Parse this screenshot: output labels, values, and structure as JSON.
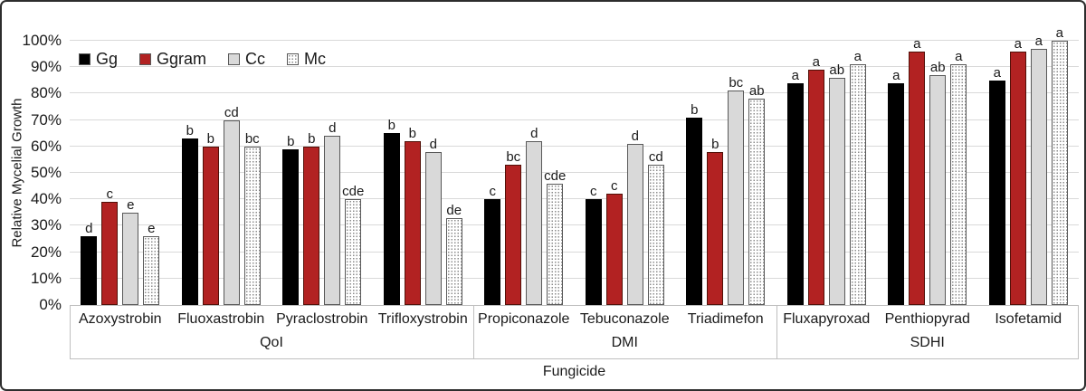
{
  "chart_data": {
    "type": "bar",
    "title": "",
    "ylabel": "Relative Mycelial Growth",
    "xlabel": "Fungicide",
    "ylim": [
      0,
      100
    ],
    "ytick_step": 10,
    "ytick_suffix": "%",
    "grid": true,
    "legend_position": "top-left-inside",
    "series": [
      {
        "name": "Gg",
        "color": "#000000",
        "style": "solid-black"
      },
      {
        "name": "Ggram",
        "color": "#b22222",
        "style": "solid-red"
      },
      {
        "name": "Cc",
        "color": "#d9d9d9",
        "style": "gray"
      },
      {
        "name": "Mc",
        "color": "#ffffff",
        "style": "dotted"
      }
    ],
    "groups": [
      {
        "label": "QoI",
        "categories": [
          {
            "name": "Azoxystrobin",
            "values": [
              26,
              39,
              35,
              26
            ],
            "letters": [
              "d",
              "c",
              "e",
              "e"
            ]
          },
          {
            "name": "Fluoxastrobin",
            "values": [
              63,
              60,
              70,
              60
            ],
            "letters": [
              "b",
              "b",
              "cd",
              "bc"
            ]
          },
          {
            "name": "Pyraclostrobin",
            "values": [
              59,
              60,
              64,
              40
            ],
            "letters": [
              "b",
              "b",
              "d",
              "cde"
            ]
          },
          {
            "name": "Trifloxystrobin",
            "values": [
              65,
              62,
              58,
              33
            ],
            "letters": [
              "b",
              "b",
              "d",
              "de"
            ]
          }
        ]
      },
      {
        "label": "DMI",
        "categories": [
          {
            "name": "Propiconazole",
            "values": [
              40,
              53,
              62,
              46
            ],
            "letters": [
              "c",
              "bc",
              "d",
              "cde"
            ]
          },
          {
            "name": "Tebuconazole",
            "values": [
              40,
              42,
              61,
              53
            ],
            "letters": [
              "c",
              "c",
              "d",
              "cd"
            ]
          },
          {
            "name": "Triadimefon",
            "values": [
              71,
              58,
              81,
              78
            ],
            "letters": [
              "b",
              "b",
              "bc",
              "ab"
            ]
          }
        ]
      },
      {
        "label": "SDHI",
        "categories": [
          {
            "name": "Fluxapyroxad",
            "values": [
              84,
              89,
              86,
              91
            ],
            "letters": [
              "a",
              "a",
              "ab",
              "a"
            ]
          },
          {
            "name": "Penthiopyrad",
            "values": [
              84,
              96,
              87,
              91
            ],
            "letters": [
              "a",
              "a",
              "ab",
              "a"
            ]
          },
          {
            "name": "Isofetamid",
            "values": [
              85,
              96,
              97,
              100
            ],
            "letters": [
              "a",
              "a",
              "a",
              "a"
            ]
          }
        ]
      }
    ]
  }
}
